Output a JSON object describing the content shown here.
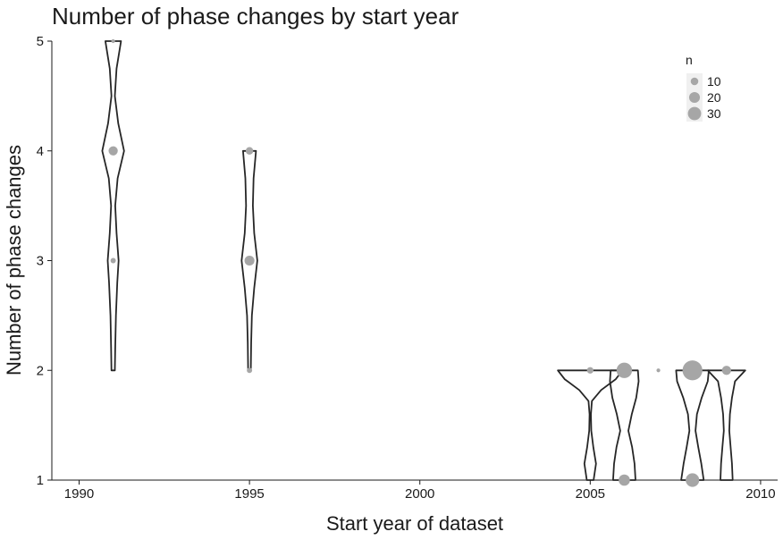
{
  "chart_data": {
    "type": "violin",
    "title": "Number of phase changes by start year",
    "xlabel": "Start year of dataset",
    "ylabel": "Number of phase changes",
    "xlim": [
      1989.2,
      2010.5
    ],
    "ylim": [
      1,
      5
    ],
    "xticks": [
      "1990",
      "1995",
      "2000",
      "2005",
      "2010"
    ],
    "yticks": [
      "1",
      "2",
      "3",
      "4",
      "5"
    ],
    "grid": false,
    "legend": {
      "title": "n",
      "position": "top-right",
      "entries": [
        "10",
        "20",
        "30"
      ]
    },
    "point_color": "#a6a6a6",
    "violin_color": "#262626",
    "violins": [
      {
        "x": 1991,
        "profile": [
          [
            2.0,
            0.05
          ],
          [
            2.2,
            0.06
          ],
          [
            2.5,
            0.08
          ],
          [
            2.8,
            0.12
          ],
          [
            3.0,
            0.16
          ],
          [
            3.25,
            0.1
          ],
          [
            3.5,
            0.06
          ],
          [
            3.75,
            0.13
          ],
          [
            4.0,
            0.32
          ],
          [
            4.25,
            0.15
          ],
          [
            4.5,
            0.05
          ],
          [
            4.75,
            0.1
          ],
          [
            5.0,
            0.23
          ]
        ],
        "points": [
          {
            "y": 5,
            "n": 1
          },
          {
            "y": 4,
            "n": 6
          },
          {
            "y": 3,
            "n": 2
          }
        ]
      },
      {
        "x": 1995,
        "profile": [
          [
            2.0,
            0.04
          ],
          [
            2.25,
            0.05
          ],
          [
            2.5,
            0.07
          ],
          [
            2.75,
            0.14
          ],
          [
            3.0,
            0.23
          ],
          [
            3.25,
            0.14
          ],
          [
            3.5,
            0.1
          ],
          [
            3.75,
            0.12
          ],
          [
            4.0,
            0.19
          ]
        ],
        "points": [
          {
            "y": 4,
            "n": 4
          },
          {
            "y": 3,
            "n": 7
          },
          {
            "y": 2,
            "n": 2
          }
        ]
      },
      {
        "x": 2005,
        "profile": [
          [
            1.0,
            0.1
          ],
          [
            1.15,
            0.17
          ],
          [
            1.3,
            0.09
          ],
          [
            1.45,
            0.03
          ],
          [
            1.6,
            0.02
          ],
          [
            1.72,
            0.05
          ],
          [
            1.82,
            0.32
          ],
          [
            1.92,
            0.75
          ],
          [
            2.0,
            0.95
          ]
        ],
        "points": [
          {
            "y": 2,
            "n": 3
          }
        ]
      },
      {
        "x": 2006,
        "profile": [
          [
            1.0,
            0.33
          ],
          [
            1.15,
            0.3
          ],
          [
            1.3,
            0.23
          ],
          [
            1.45,
            0.12
          ],
          [
            1.6,
            0.22
          ],
          [
            1.75,
            0.35
          ],
          [
            1.9,
            0.42
          ],
          [
            2.0,
            0.4
          ]
        ],
        "points": [
          {
            "y": 2,
            "n": 17
          },
          {
            "y": 1,
            "n": 9
          }
        ]
      },
      {
        "x": 2007,
        "profile": [],
        "points": [
          {
            "y": 2,
            "n": 1
          }
        ]
      },
      {
        "x": 2008,
        "profile": [
          [
            1.0,
            0.33
          ],
          [
            1.15,
            0.26
          ],
          [
            1.3,
            0.17
          ],
          [
            1.45,
            0.09
          ],
          [
            1.6,
            0.13
          ],
          [
            1.75,
            0.27
          ],
          [
            1.9,
            0.45
          ],
          [
            2.0,
            0.48
          ]
        ],
        "points": [
          {
            "y": 2,
            "n": 28
          },
          {
            "y": 1,
            "n": 13
          }
        ]
      },
      {
        "x": 2009,
        "profile": [
          [
            1.0,
            0.18
          ],
          [
            1.15,
            0.16
          ],
          [
            1.3,
            0.12
          ],
          [
            1.45,
            0.08
          ],
          [
            1.6,
            0.1
          ],
          [
            1.75,
            0.16
          ],
          [
            1.9,
            0.25
          ],
          [
            2.0,
            0.55
          ]
        ],
        "points": [
          {
            "y": 2,
            "n": 6
          }
        ]
      }
    ]
  }
}
